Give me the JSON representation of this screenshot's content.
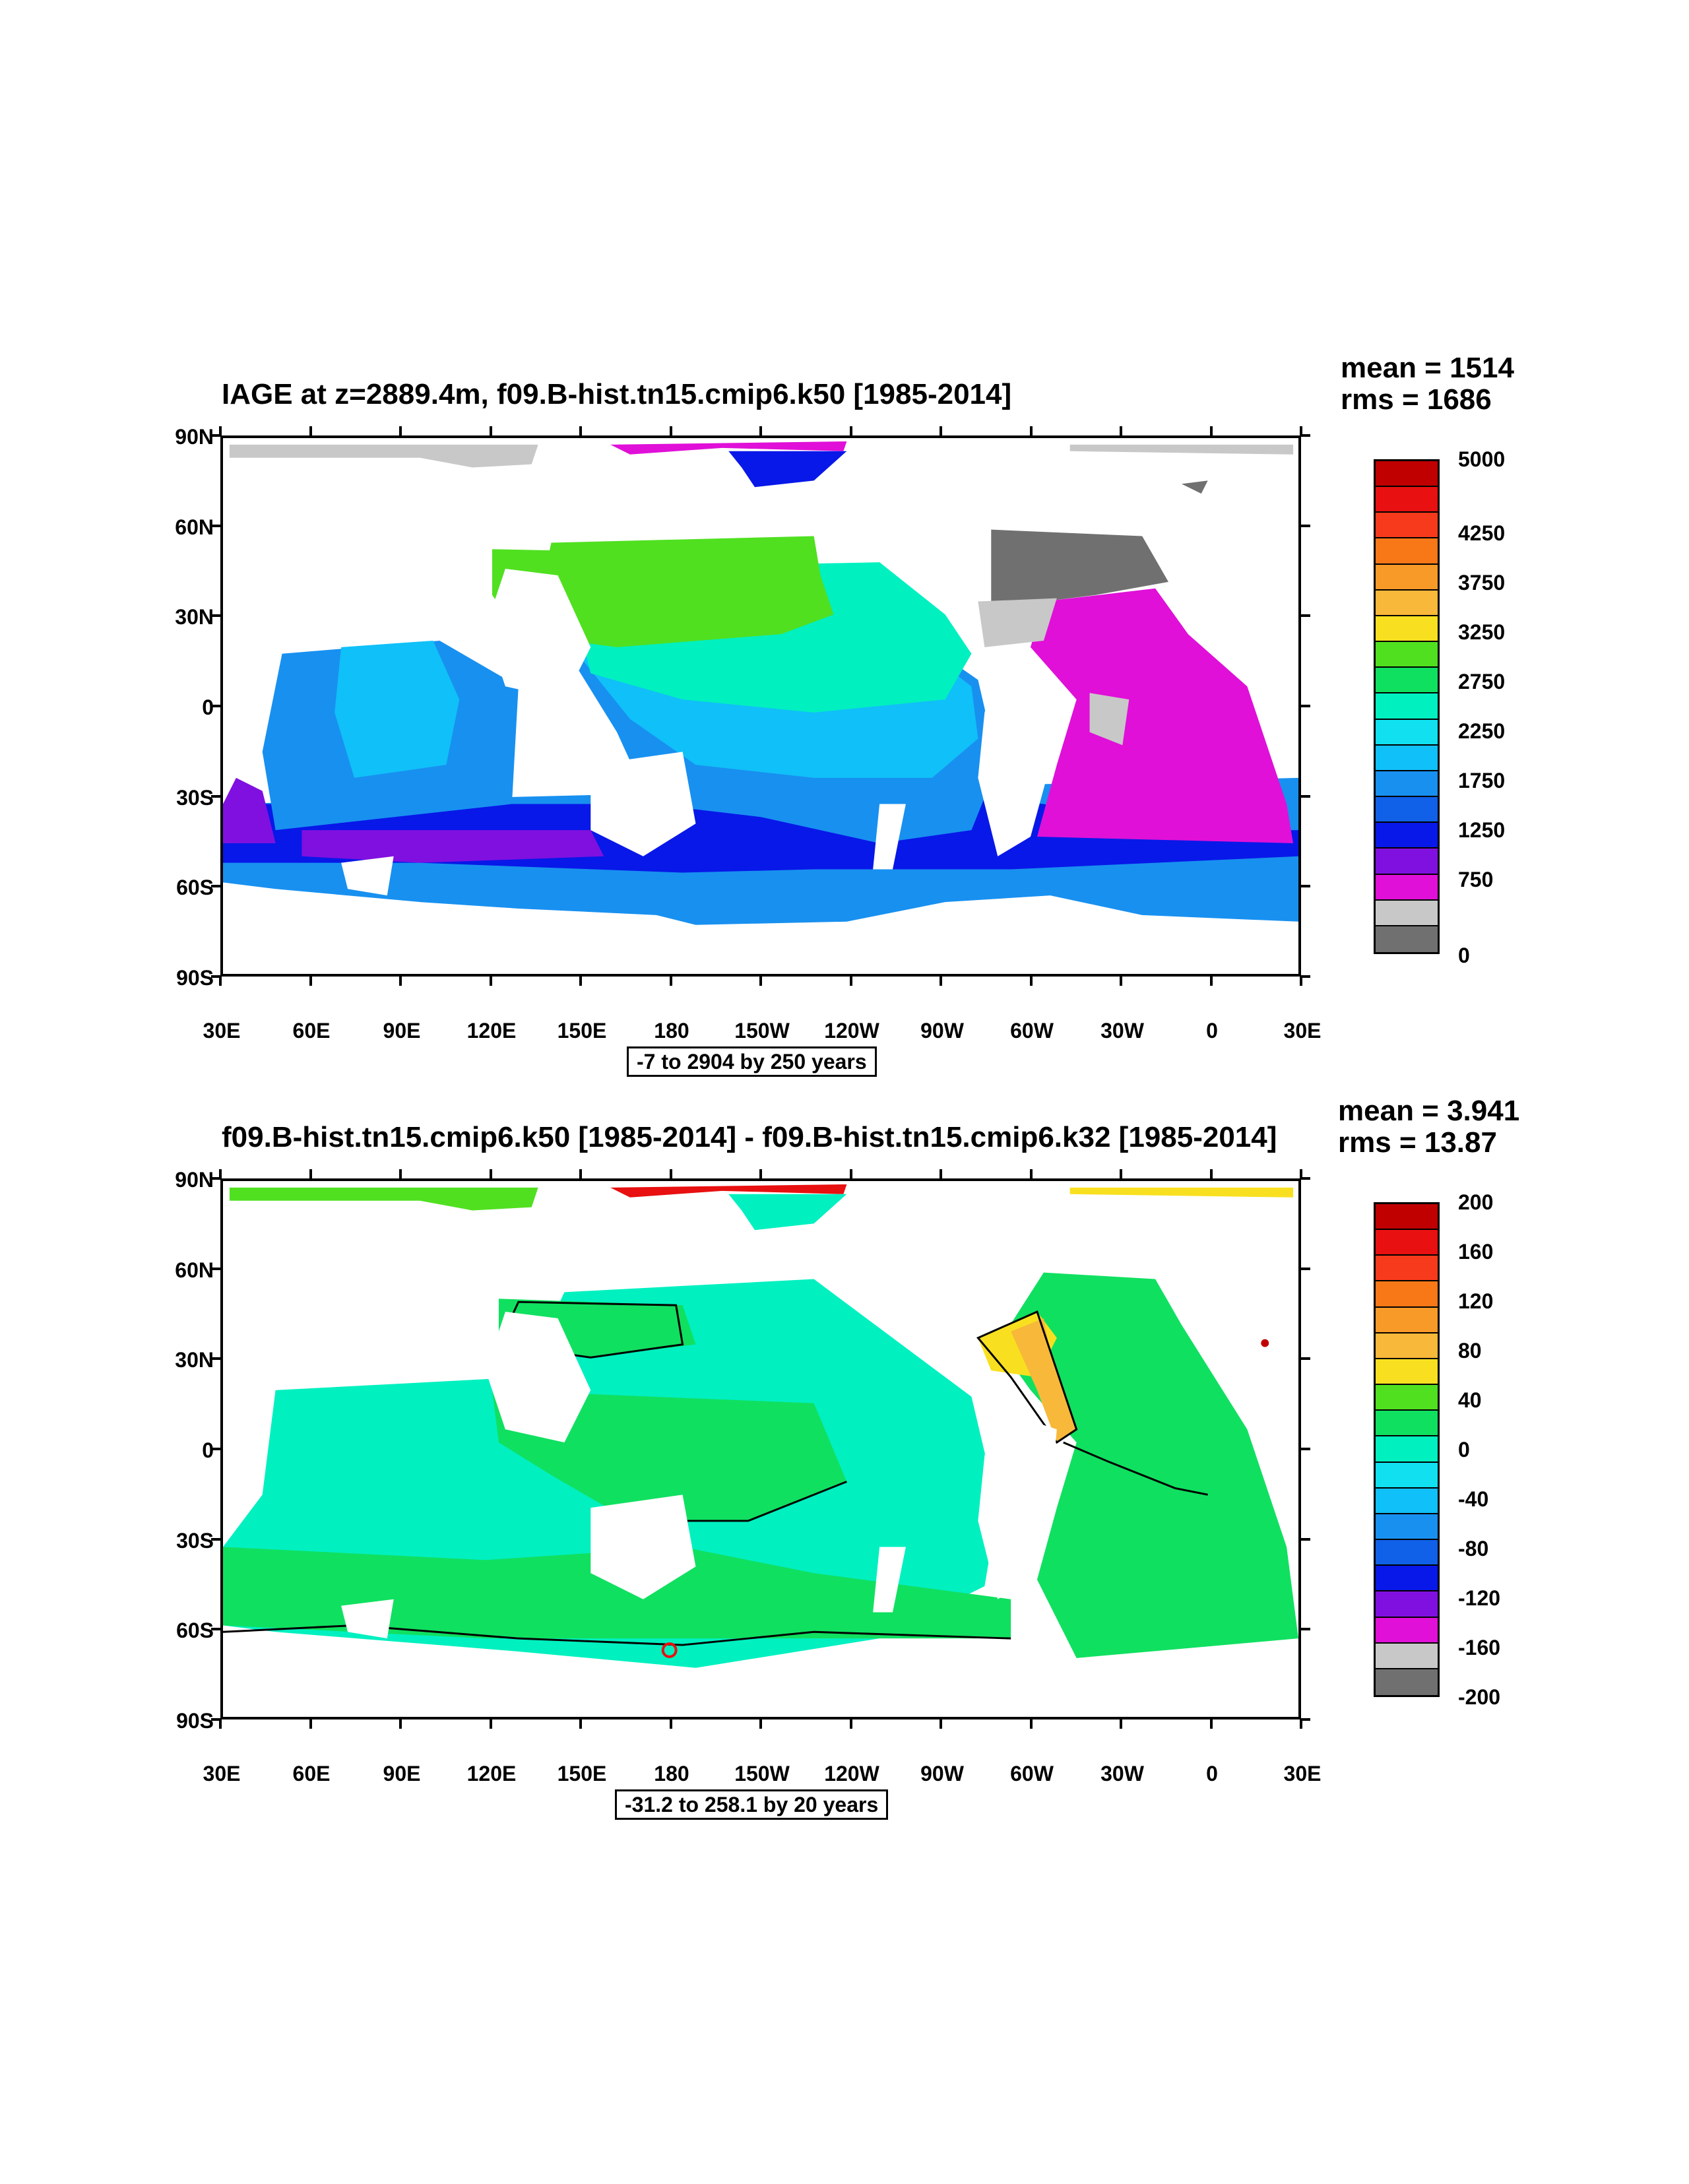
{
  "panels": [
    {
      "title": "IAGE at z=2889.4m, f09.B-hist.tn15.cmip6.k50 [1985-2014]",
      "mean": "mean = 1514",
      "rms": "rms = 1686",
      "contour_info": "-7 to 2904 by 250 years",
      "y_labels": [
        "90N",
        "60N",
        "30N",
        "0",
        "30S",
        "60S",
        "90S"
      ],
      "x_labels": [
        "30E",
        "60E",
        "90E",
        "120E",
        "150E",
        "180",
        "150W",
        "120W",
        "90W",
        "60W",
        "30W",
        "0",
        "30E"
      ],
      "colorbar_labels": [
        "5000",
        "4250",
        "3750",
        "3250",
        "2750",
        "2250",
        "1750",
        "1250",
        "750",
        "0"
      ],
      "colorbar_colors": [
        "#c00000",
        "#e81010",
        "#f83a1c",
        "#f87818",
        "#f89a28",
        "#f8b83a",
        "#f8e020",
        "#50e020",
        "#10e060",
        "#00f0c0",
        "#10e0f0",
        "#10c0f8",
        "#1890f0",
        "#1060e8",
        "#0818e8",
        "#8010e0",
        "#e010d8",
        "#c8c8c8",
        "#707070"
      ]
    },
    {
      "title": "f09.B-hist.tn15.cmip6.k50 [1985-2014] - f09.B-hist.tn15.cmip6.k32 [1985-2014]",
      "mean": "mean = 3.941",
      "rms": "rms = 13.87",
      "contour_info": "-31.2 to 258.1 by 20 years",
      "y_labels": [
        "90N",
        "60N",
        "30N",
        "0",
        "30S",
        "60S",
        "90S"
      ],
      "x_labels": [
        "30E",
        "60E",
        "90E",
        "120E",
        "150E",
        "180",
        "150W",
        "120W",
        "90W",
        "60W",
        "30W",
        "0",
        "30E"
      ],
      "colorbar_labels": [
        "200",
        "160",
        "120",
        "80",
        "40",
        "0",
        "-40",
        "-80",
        "-120",
        "-160",
        "-200"
      ],
      "colorbar_colors": [
        "#c00000",
        "#e81010",
        "#f83a1c",
        "#f87818",
        "#f89a28",
        "#f8b83a",
        "#f8e020",
        "#50e020",
        "#10e060",
        "#00f0c0",
        "#10e0f0",
        "#10c0f8",
        "#1890f0",
        "#1060e8",
        "#0818e8",
        "#8010e0",
        "#e010d8",
        "#c8c8c8",
        "#707070"
      ]
    }
  ]
}
